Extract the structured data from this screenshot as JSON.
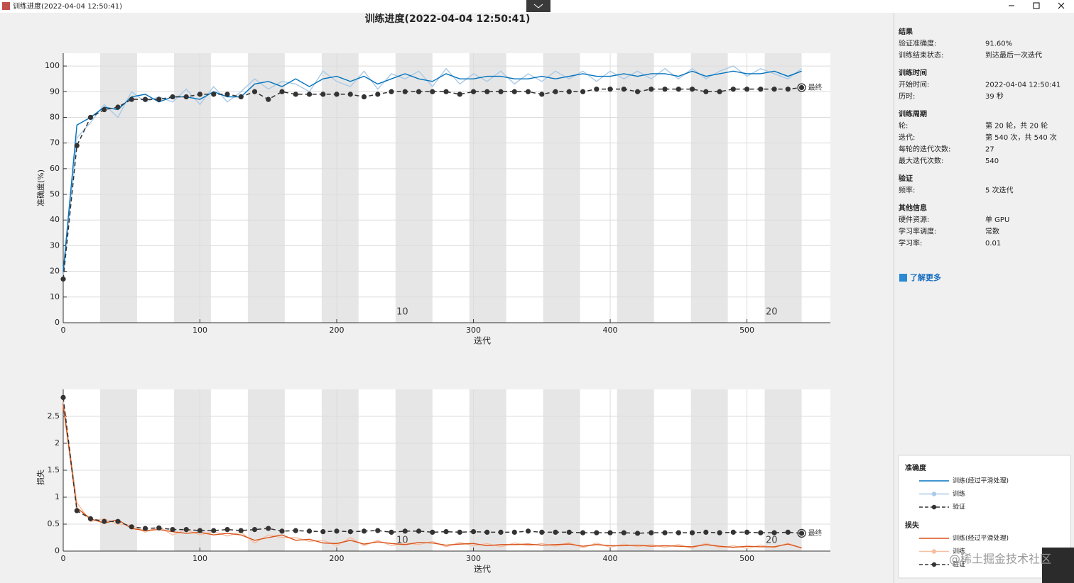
{
  "window": {
    "title": "训练进度(2022-04-04 12:50:41)"
  },
  "watermark": "@稀土掘金技术社区",
  "chart_data": [
    {
      "type": "line",
      "title": "训练进度(2022-04-04 12:50:41)",
      "x_label": "迭代",
      "y_label": "准确度(%)",
      "legend_title": "准确度",
      "xlim": [
        0,
        561
      ],
      "xticks": [
        0,
        100,
        200,
        300,
        400,
        500
      ],
      "ylim": [
        0,
        105
      ],
      "yticks": [
        0,
        10,
        20,
        30,
        40,
        50,
        60,
        70,
        80,
        90,
        100
      ],
      "grid": true,
      "epoch_length": 27,
      "epoch_ticks": [
        10,
        20
      ],
      "final_label": "最终",
      "x": [
        0,
        10,
        20,
        30,
        40,
        50,
        60,
        70,
        80,
        90,
        100,
        110,
        120,
        130,
        140,
        150,
        160,
        170,
        180,
        190,
        200,
        210,
        220,
        230,
        240,
        250,
        260,
        270,
        280,
        290,
        300,
        310,
        320,
        330,
        340,
        350,
        360,
        370,
        380,
        390,
        400,
        410,
        420,
        430,
        440,
        450,
        460,
        470,
        480,
        490,
        500,
        510,
        520,
        530,
        540
      ],
      "series": [
        {
          "name": "训练(经过平滑处理)",
          "color": "#0072bd",
          "values": [
            20,
            77,
            80,
            84,
            83,
            88,
            89,
            86,
            88,
            88,
            87,
            90,
            88,
            88,
            93,
            94,
            92,
            95,
            92,
            95,
            96,
            94,
            96,
            93,
            95,
            97,
            95,
            94,
            97,
            95,
            95,
            96,
            96,
            95,
            95,
            96,
            95,
            96,
            97,
            96,
            96,
            97,
            96,
            97,
            97,
            96,
            98,
            96,
            97,
            98,
            97,
            97,
            98,
            96,
            98
          ]
        },
        {
          "name": "训练",
          "color": "#a9c9e6",
          "values": [
            18,
            72,
            78,
            85,
            80,
            90,
            86,
            88,
            86,
            91,
            85,
            92,
            86,
            90,
            95,
            91,
            94,
            93,
            90,
            98,
            94,
            92,
            98,
            91,
            97,
            95,
            98,
            92,
            99,
            93,
            97,
            94,
            98,
            93,
            97,
            94,
            98,
            95,
            98,
            94,
            98,
            95,
            98,
            95,
            99,
            95,
            99,
            95,
            98,
            100,
            96,
            99,
            97,
            95,
            99
          ]
        },
        {
          "name": "验证",
          "color": "#333333",
          "dashed": true,
          "markers": true,
          "values": [
            17,
            69,
            80,
            83,
            84,
            87,
            87,
            87,
            88,
            88,
            89,
            89,
            89,
            88,
            90,
            87,
            90,
            89,
            89,
            89,
            89,
            89,
            88,
            89,
            90,
            90,
            90,
            90,
            90,
            89,
            90,
            90,
            90,
            90,
            90,
            89,
            90,
            90,
            90,
            91,
            91,
            91,
            90,
            91,
            91,
            91,
            91,
            90,
            90,
            91,
            91,
            91,
            91,
            91,
            91.6
          ]
        }
      ]
    },
    {
      "type": "line",
      "x_label": "迭代",
      "y_label": "损失",
      "legend_title": "损失",
      "xlim": [
        0,
        561
      ],
      "xticks": [
        0,
        100,
        200,
        300,
        400,
        500
      ],
      "ylim": [
        0,
        3
      ],
      "yticks": [
        0,
        0.5,
        1,
        1.5,
        2,
        2.5
      ],
      "grid": true,
      "epoch_length": 27,
      "epoch_ticks": [
        10,
        20
      ],
      "final_label": "最终",
      "x": [
        0,
        10,
        20,
        30,
        40,
        50,
        60,
        70,
        80,
        90,
        100,
        110,
        120,
        130,
        140,
        150,
        160,
        170,
        180,
        190,
        200,
        210,
        220,
        230,
        240,
        250,
        260,
        270,
        280,
        290,
        300,
        310,
        320,
        330,
        340,
        350,
        360,
        370,
        380,
        390,
        400,
        410,
        420,
        430,
        440,
        450,
        460,
        470,
        480,
        490,
        500,
        510,
        520,
        530,
        540
      ],
      "series": [
        {
          "name": "训练(经过平滑处理)",
          "color": "#d95319",
          "values": [
            2.7,
            0.8,
            0.6,
            0.52,
            0.58,
            0.42,
            0.38,
            0.4,
            0.36,
            0.33,
            0.35,
            0.3,
            0.33,
            0.3,
            0.2,
            0.25,
            0.3,
            0.2,
            0.22,
            0.15,
            0.14,
            0.2,
            0.13,
            0.17,
            0.14,
            0.12,
            0.16,
            0.15,
            0.11,
            0.13,
            0.14,
            0.1,
            0.12,
            0.12,
            0.13,
            0.11,
            0.12,
            0.13,
            0.09,
            0.12,
            0.1,
            0.1,
            0.11,
            0.09,
            0.1,
            0.09,
            0.08,
            0.12,
            0.09,
            0.07,
            0.09,
            0.08,
            0.08,
            0.13,
            0.06
          ]
        },
        {
          "name": "训练",
          "color": "#f5bfa3",
          "values": [
            2.8,
            0.9,
            0.55,
            0.6,
            0.5,
            0.48,
            0.35,
            0.45,
            0.3,
            0.4,
            0.3,
            0.36,
            0.28,
            0.35,
            0.15,
            0.3,
            0.25,
            0.25,
            0.18,
            0.2,
            0.1,
            0.25,
            0.1,
            0.2,
            0.1,
            0.15,
            0.12,
            0.18,
            0.08,
            0.16,
            0.1,
            0.14,
            0.08,
            0.15,
            0.1,
            0.14,
            0.09,
            0.16,
            0.06,
            0.15,
            0.07,
            0.13,
            0.08,
            0.12,
            0.07,
            0.12,
            0.05,
            0.15,
            0.06,
            0.1,
            0.05,
            0.11,
            0.06,
            0.15,
            0.05
          ]
        },
        {
          "name": "验证",
          "color": "#333333",
          "dashed": true,
          "markers": true,
          "values": [
            2.85,
            0.75,
            0.6,
            0.55,
            0.55,
            0.45,
            0.42,
            0.43,
            0.4,
            0.4,
            0.38,
            0.38,
            0.4,
            0.38,
            0.4,
            0.42,
            0.37,
            0.38,
            0.37,
            0.36,
            0.37,
            0.36,
            0.37,
            0.38,
            0.35,
            0.37,
            0.37,
            0.35,
            0.36,
            0.35,
            0.36,
            0.35,
            0.35,
            0.35,
            0.37,
            0.35,
            0.35,
            0.35,
            0.34,
            0.34,
            0.34,
            0.34,
            0.33,
            0.34,
            0.34,
            0.34,
            0.34,
            0.35,
            0.34,
            0.35,
            0.35,
            0.34,
            0.34,
            0.35,
            0.33
          ]
        }
      ]
    }
  ],
  "info": [
    {
      "title": "结果",
      "rows": [
        [
          "验证准确度:",
          "91.60%"
        ],
        [
          "训练结束状态:",
          "到达最后一次迭代"
        ]
      ]
    },
    {
      "title": "训练时间",
      "rows": [
        [
          "开始时间:",
          "2022-04-04 12:50:41"
        ],
        [
          "历时:",
          "39 秒"
        ]
      ]
    },
    {
      "title": "训练周期",
      "rows": [
        [
          "轮:",
          "第 20 轮，共 20 轮"
        ],
        [
          "迭代:",
          "第 540 次，共 540 次"
        ],
        [
          "每轮的迭代次数:",
          "27"
        ],
        [
          "最大迭代次数:",
          "540"
        ]
      ]
    },
    {
      "title": "验证",
      "rows": [
        [
          "频率:",
          "5 次迭代"
        ]
      ]
    },
    {
      "title": "其他信息",
      "rows": [
        [
          "硬件资源:",
          "单 GPU"
        ],
        [
          "学习率调度:",
          "常数"
        ],
        [
          "学习率:",
          "0.01"
        ]
      ]
    }
  ],
  "link": "了解更多"
}
